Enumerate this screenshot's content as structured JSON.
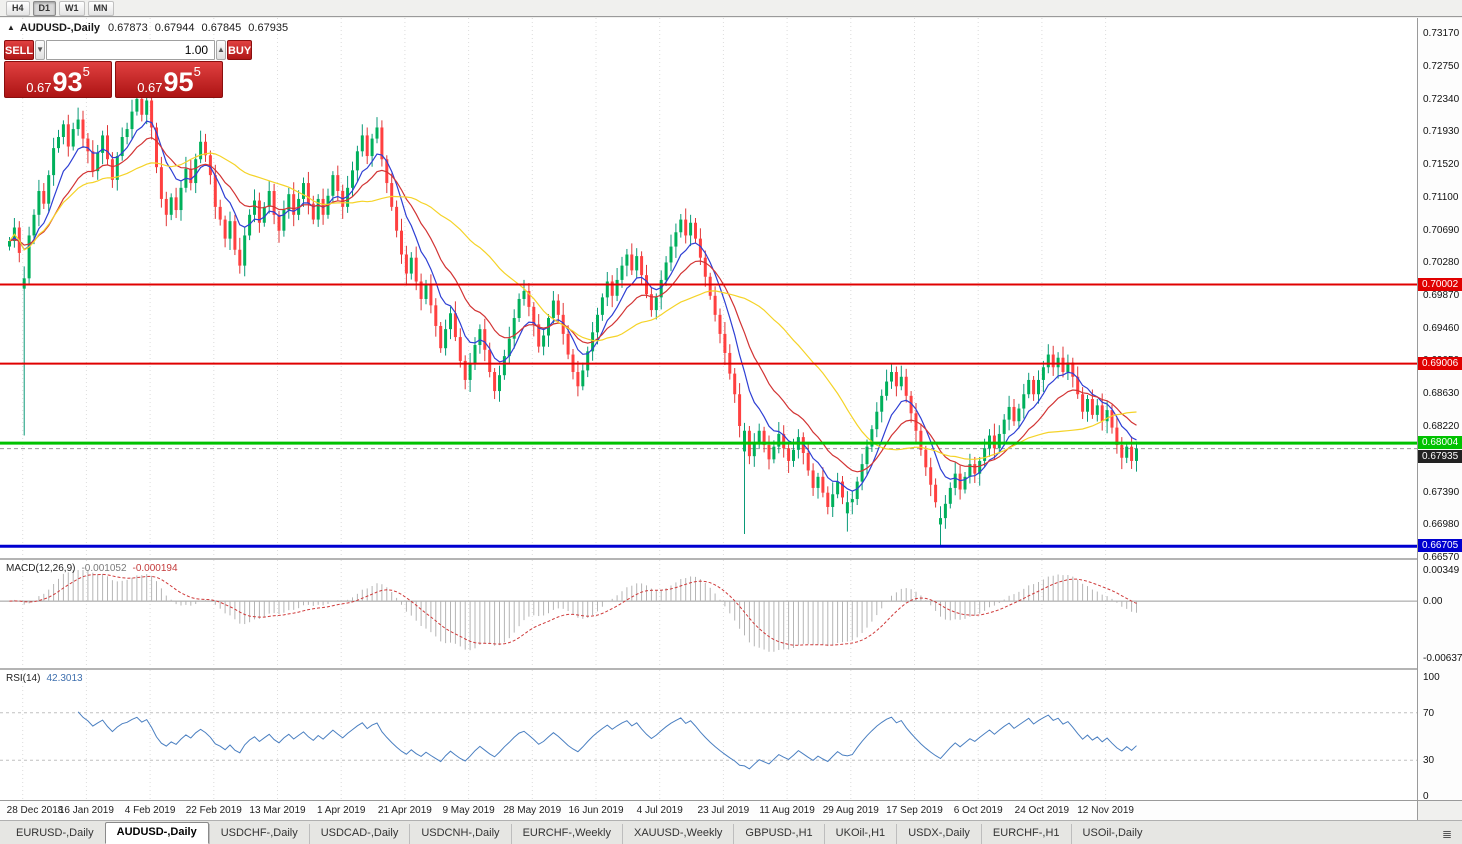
{
  "toolbar": {
    "timeframes": [
      {
        "label": "H4",
        "active": false
      },
      {
        "label": "D1",
        "active": true
      },
      {
        "label": "W1",
        "active": false
      },
      {
        "label": "MN",
        "active": false
      }
    ]
  },
  "chart_header": {
    "symbol": "AUDUSD-,Daily",
    "open": "0.67873",
    "high": "0.67944",
    "low": "0.67845",
    "close": "0.67935"
  },
  "trade_panel": {
    "sell_label": "SELL",
    "buy_label": "BUY",
    "volume": "1.00",
    "sell_price": {
      "head": "0.67",
      "big": "93",
      "sup": "5"
    },
    "buy_price": {
      "head": "0.67",
      "big": "95",
      "sup": "5"
    }
  },
  "tabs": {
    "items": [
      {
        "label": "EURUSD-,Daily",
        "active": false
      },
      {
        "label": "AUDUSD-,Daily",
        "active": true
      },
      {
        "label": "USDCHF-,Daily",
        "active": false
      },
      {
        "label": "USDCAD-,Daily",
        "active": false
      },
      {
        "label": "USDCNH-,Daily",
        "active": false
      },
      {
        "label": "EURCHF-,Weekly",
        "active": false
      },
      {
        "label": "XAUUSD-,Weekly",
        "active": false
      },
      {
        "label": "GBPUSD-,H1",
        "active": false
      },
      {
        "label": "UKOil-,H1",
        "active": false
      },
      {
        "label": "USDX-,Daily",
        "active": false
      },
      {
        "label": "EURCHF-,H1",
        "active": false
      },
      {
        "label": "USOil-,Daily",
        "active": false
      }
    ]
  },
  "chart_data": {
    "type": "candlestick",
    "symbol": "AUDUSD",
    "timeframe": "Daily",
    "y_ticks": [
      "0.73170",
      "0.72750",
      "0.72340",
      "0.71930",
      "0.71520",
      "0.71100",
      "0.70690",
      "0.70280",
      "0.69870",
      "0.69460",
      "0.69050",
      "0.68630",
      "0.68220",
      "0.67810",
      "0.67390",
      "0.66980",
      "0.66570"
    ],
    "x_labels": [
      "28 Dec 2018",
      "16 Jan 2019",
      "4 Feb 2019",
      "22 Feb 2019",
      "13 Mar 2019",
      "1 Apr 2019",
      "21 Apr 2019",
      "9 May 2019",
      "28 May 2019",
      "16 Jun 2019",
      "4 Jul 2019",
      "23 Jul 2019",
      "11 Aug 2019",
      "29 Aug 2019",
      "17 Sep 2019",
      "6 Oct 2019",
      "24 Oct 2019",
      "12 Nov 2019"
    ],
    "first_label_index": 3,
    "x_label_step": 13,
    "candles": {
      "first_open": 0.7048,
      "closes": [
        0.7055,
        0.7072,
        0.704,
        0.7008,
        0.7062,
        0.7088,
        0.7118,
        0.7102,
        0.7138,
        0.7172,
        0.7186,
        0.7202,
        0.7174,
        0.7196,
        0.7208,
        0.7184,
        0.7168,
        0.7143,
        0.7166,
        0.7188,
        0.7158,
        0.7132,
        0.7162,
        0.7186,
        0.7196,
        0.7218,
        0.7234,
        0.7214,
        0.7232,
        0.7198,
        0.7148,
        0.7108,
        0.7088,
        0.711,
        0.7094,
        0.7122,
        0.7146,
        0.7128,
        0.7158,
        0.718,
        0.7163,
        0.7138,
        0.7098,
        0.7082,
        0.7058,
        0.708,
        0.7044,
        0.7024,
        0.7062,
        0.7088,
        0.7106,
        0.7078,
        0.7098,
        0.7118,
        0.7088,
        0.7068,
        0.7094,
        0.7114,
        0.7088,
        0.7108,
        0.7128,
        0.7102,
        0.7082,
        0.7108,
        0.7088,
        0.7112,
        0.7138,
        0.7118,
        0.7098,
        0.7122,
        0.7144,
        0.7168,
        0.7188,
        0.7162,
        0.7184,
        0.7198,
        0.7158,
        0.7128,
        0.7098,
        0.7068,
        0.7038,
        0.7014,
        0.7034,
        0.7004,
        0.6982,
        0.7,
        0.6974,
        0.6948,
        0.692,
        0.6944,
        0.6964,
        0.6934,
        0.6904,
        0.688,
        0.69,
        0.6924,
        0.6944,
        0.6918,
        0.689,
        0.6866,
        0.6886,
        0.691,
        0.6932,
        0.6958,
        0.6982,
        0.6992,
        0.6972,
        0.695,
        0.6922,
        0.6936,
        0.6958,
        0.698,
        0.6962,
        0.6938,
        0.6912,
        0.689,
        0.6872,
        0.6892,
        0.6916,
        0.694,
        0.6962,
        0.6984,
        0.7004,
        0.6986,
        0.7006,
        0.7024,
        0.7038,
        0.7018,
        0.7036,
        0.7012,
        0.6988,
        0.6968,
        0.6984,
        0.7006,
        0.7028,
        0.7048,
        0.7066,
        0.7082,
        0.7062,
        0.7078,
        0.7058,
        0.7034,
        0.701,
        0.6986,
        0.6962,
        0.6938,
        0.6914,
        0.6888,
        0.6862,
        0.6822,
        0.6816,
        0.6784,
        0.68,
        0.6816,
        0.6798,
        0.678,
        0.6796,
        0.6812,
        0.6794,
        0.6778,
        0.6792,
        0.6808,
        0.6788,
        0.6766,
        0.6744,
        0.6758,
        0.6738,
        0.672,
        0.6736,
        0.6752,
        0.6732,
        0.6726,
        0.673,
        0.6752,
        0.6774,
        0.6796,
        0.6818,
        0.684,
        0.686,
        0.6878,
        0.689,
        0.6872,
        0.6884,
        0.686,
        0.6838,
        0.6816,
        0.6792,
        0.677,
        0.6748,
        0.6726,
        0.6706,
        0.6724,
        0.6744,
        0.6762,
        0.6742,
        0.6758,
        0.6774,
        0.6762,
        0.6778,
        0.6794,
        0.681,
        0.6794,
        0.6812,
        0.683,
        0.6846,
        0.6828,
        0.6844,
        0.6862,
        0.688,
        0.6862,
        0.688,
        0.6896,
        0.6912,
        0.6896,
        0.6908,
        0.689,
        0.6902,
        0.6884,
        0.6862,
        0.684,
        0.6856,
        0.6836,
        0.6848,
        0.6828,
        0.6842,
        0.682,
        0.6798,
        0.6782,
        0.6796,
        0.6778,
        0.67935
      ],
      "overrides": {
        "3": {
          "open": 0.6995,
          "low": 0.681
        },
        "28": {
          "high": 0.7242
        },
        "150": {
          "open": 0.679,
          "low": 0.6686
        },
        "171": {
          "open": 0.6712,
          "low": 0.6689
        },
        "190": {
          "open": 0.6698,
          "low": 0.6671
        },
        "212": {
          "high": 0.6925
        }
      }
    },
    "levels": [
      {
        "price": 0.70002,
        "label": "0.70002",
        "color": "#e00000",
        "width": 2
      },
      {
        "price": 0.69006,
        "label": "0.69006",
        "color": "#e00000",
        "width": 2
      },
      {
        "price": 0.68004,
        "label": "0.68004",
        "color": "#00c200",
        "width": 3
      },
      {
        "price": 0.66705,
        "label": "0.66705",
        "color": "#0000d0",
        "width": 3
      }
    ],
    "current_price": {
      "price": 0.67935,
      "label": "0.67935",
      "line_color": "#9a9a9a",
      "label_bg": "#222222"
    },
    "moving_averages": [
      {
        "name": "fast",
        "type": "ema",
        "period": 8,
        "color": "#2e3fd4"
      },
      {
        "name": "mid",
        "type": "ema",
        "period": 17,
        "color": "#d23434"
      },
      {
        "name": "slow",
        "type": "sma",
        "period": 34,
        "color": "#f5d328"
      }
    ],
    "indicators": {
      "macd": {
        "name": "MACD(12,26,9)",
        "value_main": "-0.001052",
        "value_signal": "-0.000194",
        "fast": 12,
        "slow": 26,
        "signal": 9,
        "axis": [
          "0.00349",
          "0.00",
          "-0.00637"
        ]
      },
      "rsi": {
        "name": "RSI(14)",
        "value": "42.3013",
        "period": 14,
        "axis": [
          "100",
          "70",
          "30",
          "0"
        ],
        "levels": [
          70,
          30
        ]
      }
    },
    "colors": {
      "up": "#00b05b",
      "down": "#ff4040",
      "wick_up": "#0a9a78",
      "wick_down": "#e03636",
      "histogram": "#b5b5b5",
      "macd_signal": "#cf3a3a",
      "rsi_line": "#4a7fc1",
      "grid": "#dcdcdc"
    }
  }
}
